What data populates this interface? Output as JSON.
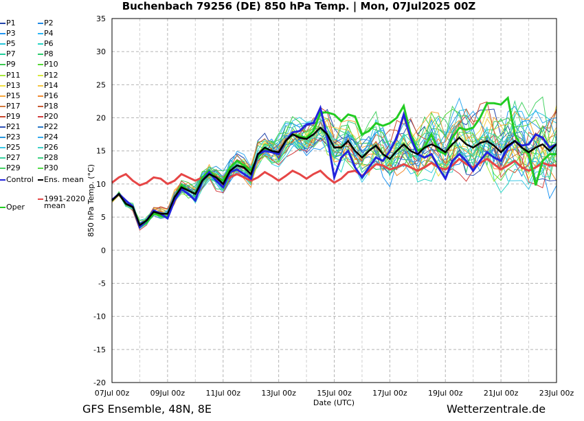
{
  "chart_data": {
    "type": "line",
    "title": "Buchenbach 79256 (DE)  850 hPa Temp. | Mon, 07Jul2025 00Z",
    "xlabel": "Date (UTC)",
    "ylabel": "850 hPa Temp. (°C)",
    "ylim": [
      -20,
      35
    ],
    "yticks": [
      -20,
      -15,
      -10,
      -5,
      0,
      5,
      10,
      15,
      20,
      25,
      30,
      35
    ],
    "xlim_days": [
      0,
      16
    ],
    "xtick_labels": [
      "07Jul 00z",
      "09Jul 00z",
      "11Jul 00z",
      "13Jul 00z",
      "15Jul 00z",
      "17Jul 00z",
      "19Jul 00z",
      "21Jul 00z",
      "23Jul 00z"
    ],
    "grid": true,
    "step_hours": 6,
    "members": [
      {
        "name": "P1",
        "color": "#2244aa"
      },
      {
        "name": "P2",
        "color": "#1e88e5"
      },
      {
        "name": "P3",
        "color": "#2196f3"
      },
      {
        "name": "P4",
        "color": "#29b6f6"
      },
      {
        "name": "P5",
        "color": "#26c6da"
      },
      {
        "name": "P6",
        "color": "#26d4c4"
      },
      {
        "name": "P7",
        "color": "#1fcf9a"
      },
      {
        "name": "P8",
        "color": "#29cc6a"
      },
      {
        "name": "P9",
        "color": "#3cc850"
      },
      {
        "name": "P10",
        "color": "#55d835"
      },
      {
        "name": "P11",
        "color": "#a6e83c"
      },
      {
        "name": "P12",
        "color": "#d8e83c"
      },
      {
        "name": "P13",
        "color": "#f0e040"
      },
      {
        "name": "P14",
        "color": "#f5c542"
      },
      {
        "name": "P15",
        "color": "#f7a63a"
      },
      {
        "name": "P16",
        "color": "#f08a30"
      },
      {
        "name": "P17",
        "color": "#d2783c"
      },
      {
        "name": "P18",
        "color": "#c85a32"
      },
      {
        "name": "P19",
        "color": "#c8462c"
      },
      {
        "name": "P20",
        "color": "#d23c3c"
      },
      {
        "name": "P21",
        "color": "#3050b4"
      },
      {
        "name": "P22",
        "color": "#2878c8"
      },
      {
        "name": "P23",
        "color": "#2896dc"
      },
      {
        "name": "P24",
        "color": "#32aaf0"
      },
      {
        "name": "P25",
        "color": "#3cc8e6"
      },
      {
        "name": "P26",
        "color": "#3cd2c8"
      },
      {
        "name": "P27",
        "color": "#3cd2a0"
      },
      {
        "name": "P28",
        "color": "#3cd282"
      },
      {
        "name": "P29",
        "color": "#46d264"
      },
      {
        "name": "P30",
        "color": "#50dc46"
      }
    ],
    "control": {
      "name": "Control",
      "color": "#2222dd",
      "values": [
        7.6,
        8.5,
        7.5,
        6.6,
        3.5,
        4.5,
        6.0,
        5.5,
        4.8,
        7.5,
        9.2,
        8.5,
        7.5,
        10.5,
        11.8,
        10.5,
        9.5,
        11.8,
        12.2,
        11.5,
        10.8,
        14.5,
        15.0,
        14.8,
        14.5,
        16.5,
        17.8,
        18.0,
        19.0,
        19.2,
        21.5,
        17.0,
        11.0,
        14.0,
        15.0,
        12.5,
        11.0,
        12.5,
        14.0,
        13.5,
        15.0,
        17.0,
        20.5,
        17.0,
        14.5,
        14.0,
        14.5,
        12.5,
        10.8,
        13.5,
        14.5,
        13.5,
        12.0,
        13.5,
        14.8,
        14.0,
        13.5,
        15.5,
        16.5,
        15.8,
        16.0,
        17.5,
        17.0,
        15.5,
        16.0
      ]
    },
    "ens_mean": {
      "name": "Ens. mean",
      "color": "#000000",
      "values": [
        7.5,
        8.5,
        7.0,
        6.5,
        3.8,
        4.5,
        5.8,
        5.5,
        5.5,
        8.0,
        9.5,
        9.0,
        8.5,
        10.5,
        11.5,
        11.0,
        10.0,
        12.0,
        12.8,
        12.5,
        11.5,
        14.5,
        15.5,
        15.0,
        14.8,
        16.5,
        17.5,
        17.0,
        16.8,
        17.5,
        18.5,
        17.5,
        15.5,
        15.5,
        16.5,
        15.0,
        14.0,
        15.0,
        15.8,
        14.5,
        13.8,
        15.0,
        16.0,
        15.0,
        14.5,
        15.5,
        16.0,
        15.5,
        14.8,
        16.0,
        17.0,
        16.0,
        15.5,
        16.2,
        16.5,
        15.8,
        14.8,
        15.8,
        16.5,
        15.5,
        14.8,
        15.5,
        16.0,
        15.0,
        16.0
      ]
    },
    "oper": {
      "name": "Oper",
      "color": "#22cc22",
      "values": [
        7.5,
        8.5,
        7.0,
        6.5,
        3.5,
        4.2,
        5.5,
        5.2,
        5.0,
        8.0,
        9.8,
        9.0,
        8.5,
        11.0,
        12.0,
        11.0,
        10.5,
        12.5,
        13.5,
        12.8,
        12.0,
        14.0,
        15.2,
        15.0,
        14.5,
        16.5,
        17.5,
        17.2,
        17.0,
        18.0,
        20.8,
        20.8,
        20.5,
        19.5,
        20.5,
        20.2,
        17.5,
        18.0,
        19.2,
        18.8,
        19.2,
        20.0,
        21.8,
        17.5,
        15.0,
        15.5,
        17.5,
        15.0,
        14.5,
        17.0,
        18.5,
        18.2,
        18.5,
        20.0,
        22.2,
        22.2,
        22.0,
        23.0,
        17.5,
        15.5,
        14.5,
        9.8,
        13.5,
        14.5,
        14.5
      ]
    },
    "clim_mean": {
      "name": "1991-2020\nmean",
      "color": "#e64646",
      "values": [
        10.2,
        11.0,
        11.5,
        10.5,
        9.8,
        10.2,
        11.0,
        10.8,
        10.0,
        10.5,
        11.5,
        11.0,
        10.5,
        11.0,
        11.8,
        11.2,
        10.5,
        11.0,
        11.5,
        11.0,
        10.5,
        11.0,
        11.8,
        11.2,
        10.5,
        11.2,
        12.0,
        11.5,
        10.8,
        11.5,
        12.0,
        11.0,
        10.2,
        10.8,
        11.8,
        12.0,
        11.2,
        12.0,
        13.0,
        12.8,
        12.2,
        12.5,
        13.0,
        12.5,
        12.0,
        12.5,
        13.2,
        12.5,
        12.2,
        12.8,
        13.8,
        13.0,
        12.5,
        13.2,
        13.8,
        13.0,
        12.2,
        12.8,
        13.5,
        12.5,
        12.0,
        12.5,
        13.2,
        12.8,
        12.8
      ]
    }
  },
  "legend": {
    "items": [
      {
        "label": "P1",
        "color": "#2244aa"
      },
      {
        "label": "P2",
        "color": "#1e88e5"
      },
      {
        "label": "P3",
        "color": "#2196f3"
      },
      {
        "label": "P4",
        "color": "#29b6f6"
      },
      {
        "label": "P5",
        "color": "#26c6da"
      },
      {
        "label": "P6",
        "color": "#26d4c4"
      },
      {
        "label": "P7",
        "color": "#1fcf9a"
      },
      {
        "label": "P8",
        "color": "#29cc6a"
      },
      {
        "label": "P9",
        "color": "#3cc850"
      },
      {
        "label": "P10",
        "color": "#55d835"
      },
      {
        "label": "P11",
        "color": "#a6e83c"
      },
      {
        "label": "P12",
        "color": "#d8e83c"
      },
      {
        "label": "P13",
        "color": "#f0e040"
      },
      {
        "label": "P14",
        "color": "#f5c542"
      },
      {
        "label": "P15",
        "color": "#f7a63a"
      },
      {
        "label": "P16",
        "color": "#f08a30"
      },
      {
        "label": "P17",
        "color": "#d2783c"
      },
      {
        "label": "P18",
        "color": "#c85a32"
      },
      {
        "label": "P19",
        "color": "#c8462c"
      },
      {
        "label": "P20",
        "color": "#d23c3c"
      },
      {
        "label": "P21",
        "color": "#3050b4"
      },
      {
        "label": "P22",
        "color": "#2878c8"
      },
      {
        "label": "P23",
        "color": "#2896dc"
      },
      {
        "label": "P24",
        "color": "#32aaf0"
      },
      {
        "label": "P25",
        "color": "#3cc8e6"
      },
      {
        "label": "P26",
        "color": "#3cd2c8"
      },
      {
        "label": "P27",
        "color": "#3cd2a0"
      },
      {
        "label": "P28",
        "color": "#3cd282"
      },
      {
        "label": "P29",
        "color": "#46d264"
      },
      {
        "label": "P30",
        "color": "#50dc46"
      },
      {
        "label": "Control",
        "color": "#2222dd"
      },
      {
        "label": "Ens. mean",
        "color": "#000000"
      },
      {
        "label": "Oper",
        "color": "#22cc22"
      },
      {
        "label": "1991-2020",
        "color": "#e64646"
      },
      {
        "label": "mean",
        "color": ""
      }
    ]
  },
  "footer": {
    "left": "GFS Ensemble, 48N, 8E",
    "right": "Wetterzentrale.de"
  }
}
